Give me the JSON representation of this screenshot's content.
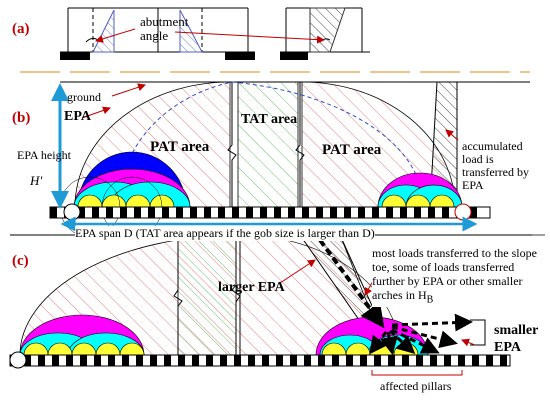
{
  "panels": {
    "a": "(a)",
    "b": "(b)",
    "c": "(c)"
  },
  "labels": {
    "abutment_angle": "abutment angle",
    "ground": "ground",
    "epa": "EPA",
    "epa_height": "EPA height",
    "epa_height_symbol": "H'",
    "pat_area": "PAT area",
    "tat_area": "TAT area",
    "accumulated_load": "accumulated load is transferred by EPA",
    "epa_span": "EPA span D (TAT area appears if the gob size is larger than D)",
    "most_loads": "most loads transferred to the slope toe, some of loads transferred further by EPA or other smaller arches in H",
    "subscript_b": "B",
    "larger_epa": "larger EPA",
    "smaller_epa": "smaller EPA",
    "affected_pillars": "affected pillars"
  },
  "colors": {
    "panel_label": "#c00000",
    "hatch_red": "#e07070",
    "hatch_green": "#5cb85c",
    "hatch_blue": "#5060c0",
    "magenta": "#ff00ff",
    "cyan": "#00ffff",
    "yellow": "#ffff33",
    "blue_arch": "#0000ff",
    "arrow_blue": "#1e9bd7",
    "dash_blue": "#3050d0"
  }
}
